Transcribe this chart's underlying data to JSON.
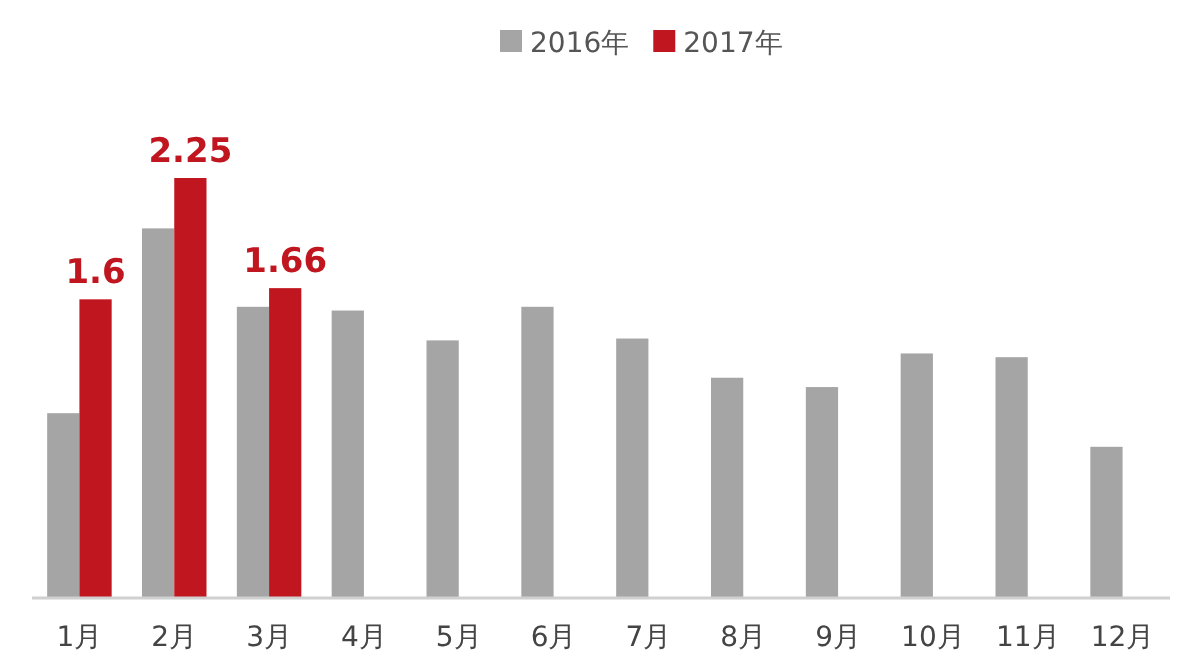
{
  "chart_data": {
    "type": "bar",
    "categories": [
      "1月",
      "2月",
      "3月",
      "4月",
      "5月",
      "6月",
      "7月",
      "8月",
      "9月",
      "10月",
      "11月",
      "12月"
    ],
    "series": [
      {
        "name": "2016年",
        "color": "#a6a5a6",
        "values": [
          0.99,
          1.98,
          1.56,
          1.54,
          1.38,
          1.56,
          1.39,
          1.18,
          1.13,
          1.31,
          1.29,
          0.81
        ]
      },
      {
        "name": "2017年",
        "color": "#c0161f",
        "values": [
          1.6,
          2.25,
          1.66,
          null,
          null,
          null,
          null,
          null,
          null,
          null,
          null,
          null
        ],
        "value_labels": [
          "1.6",
          "2.25",
          "1.66",
          null,
          null,
          null,
          null,
          null,
          null,
          null,
          null,
          null
        ]
      }
    ],
    "tick_labels": "x",
    "legend": "top right",
    "grid": false
  }
}
